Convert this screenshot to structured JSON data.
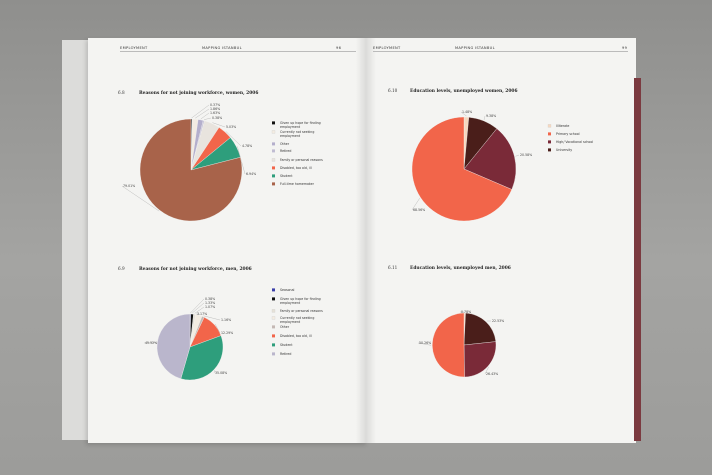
{
  "header": {
    "left_section": "EMPLOYMENT",
    "left_title": "MAPPING ISTANBUL",
    "left_page_no": "96",
    "right_section": "EMPLOYMENT",
    "right_title": "MAPPING ISTANBUL",
    "right_page_no": "99"
  },
  "chart_data": [
    {
      "id": "6.8",
      "type": "pie",
      "number": "6.8",
      "title": "Reasons for not joining workforce, women, 2006",
      "slices": [
        {
          "label": "Given up hope for finding employment",
          "value": 0.37,
          "value_label": "0.37%",
          "color": "#111111"
        },
        {
          "label": "Currently not seeking employment",
          "value": 1.86,
          "value_label": "1.86%",
          "color": "#f3ece2"
        },
        {
          "label": "Other",
          "value": 1.63,
          "value_label": "1.63%",
          "color": "#b4afcc"
        },
        {
          "label": "Retired",
          "value": 0.38,
          "value_label": "0.38%",
          "color": "#c0bcd2"
        },
        {
          "label": "Family or personal reasons",
          "value": 5.03,
          "value_label": "5.03%",
          "color": "#e8e4de"
        },
        {
          "label": "Disabled, too old, ill",
          "value": 4.78,
          "value_label": "4.78%",
          "color": "#f2654a"
        },
        {
          "label": "Student",
          "value": 6.94,
          "value_label": "6.94%",
          "color": "#2e9e7c"
        },
        {
          "label": "Full-time homemaker",
          "value": 79.01,
          "value_label": "79.01%",
          "color": "#a8634a"
        }
      ]
    },
    {
      "id": "6.9",
      "type": "pie",
      "number": "6.9",
      "title": "Reasons for not joining workforce, men, 2006",
      "slices": [
        {
          "label": "Seasonal",
          "value": 0.38,
          "value_label": "0.38%",
          "color": "#3b3fa8"
        },
        {
          "label": "Given up hope for finding employment",
          "value": 1.33,
          "value_label": "1.33%",
          "color": "#111111"
        },
        {
          "label": "Family or personal reasons",
          "value": 1.07,
          "value_label": "1.07%",
          "color": "#e6e2d8"
        },
        {
          "label": "Currently not seeking employment",
          "value": 3.17,
          "value_label": "3.17%",
          "color": "#f3ece2"
        },
        {
          "label": "Other",
          "value": 1.16,
          "value_label": "1.16%",
          "color": "#c4b8b4"
        },
        {
          "label": "Disabled, too old, ill",
          "value": 12.29,
          "value_label": "12.29%",
          "color": "#f2654a"
        },
        {
          "label": "Student",
          "value": 35.08,
          "value_label": "35.08%",
          "color": "#2e9e7c"
        },
        {
          "label": "Retired",
          "value": 45.52,
          "value_label": "45.52%",
          "color": "#bab6cc"
        }
      ]
    },
    {
      "id": "6.10",
      "type": "pie",
      "number": "6.10",
      "title": "Education levels, unemployed women, 2006",
      "slices": [
        {
          "label": "Illiterate",
          "value": 1.48,
          "value_label": "1.48%",
          "color": "#f6d8c0"
        },
        {
          "label": "University",
          "value": 9.38,
          "value_label": "9.38%",
          "color": "#4a1e1a"
        },
        {
          "label": "High/ Vocational school",
          "value": 20.58,
          "value_label": "20.58%",
          "color": "#7a2a38"
        },
        {
          "label": "Primary school",
          "value": 68.56,
          "value_label": "68.56%",
          "color": "#f2654a"
        }
      ]
    },
    {
      "id": "6.11",
      "type": "pie",
      "number": "6.11",
      "title": "Education levels, unemployed men, 2006",
      "slices": [
        {
          "label": "Illiterate",
          "value": 0.78,
          "value_label": "0.78%",
          "color": "#f6d8c0"
        },
        {
          "label": "University",
          "value": 22.53,
          "value_label": "22.53%",
          "color": "#4a1e1a"
        },
        {
          "label": "High/ Vocational school",
          "value": 26.43,
          "value_label": "26.43%",
          "color": "#7a2a38"
        },
        {
          "label": "Primary school",
          "value": 50.26,
          "value_label": "50.26%",
          "color": "#f2654a"
        }
      ]
    }
  ],
  "legends": {
    "c68": [
      {
        "label": "Given up hope for finding employment",
        "color": "#111111"
      },
      {
        "label": "Currently not seeking employment",
        "color": "#f3ece2"
      },
      {
        "label": "Other",
        "color": "#b4afcc"
      },
      {
        "label": "Retired",
        "color": "#c0bcd2"
      },
      {
        "label": "Family or personal reasons",
        "color": "#e8e4de"
      },
      {
        "label": "Disabled, too old, ill",
        "color": "#f2654a"
      },
      {
        "label": "Student",
        "color": "#2e9e7c"
      },
      {
        "label": "Full-time homemaker",
        "color": "#a8634a"
      }
    ],
    "c69": [
      {
        "label": "Seasonal",
        "color": "#3b3fa8"
      },
      {
        "label": "Given up hope for finding employment",
        "color": "#111111"
      },
      {
        "label": "Family or personal reasons",
        "color": "#e6e2d8"
      },
      {
        "label": "Currently not seeking employment",
        "color": "#f3ece2"
      },
      {
        "label": "Other",
        "color": "#c4b8b4"
      },
      {
        "label": "Disabled, too old, ill",
        "color": "#f2654a"
      },
      {
        "label": "Student",
        "color": "#2e9e7c"
      },
      {
        "label": "Retired",
        "color": "#bab6cc"
      }
    ],
    "c610": [
      {
        "label": "Illiterate",
        "color": "#f6d8c0"
      },
      {
        "label": "Primary school",
        "color": "#f2654a"
      },
      {
        "label": "High/ Vocational school",
        "color": "#7a2a38"
      },
      {
        "label": "University",
        "color": "#4a1e1a"
      }
    ]
  }
}
